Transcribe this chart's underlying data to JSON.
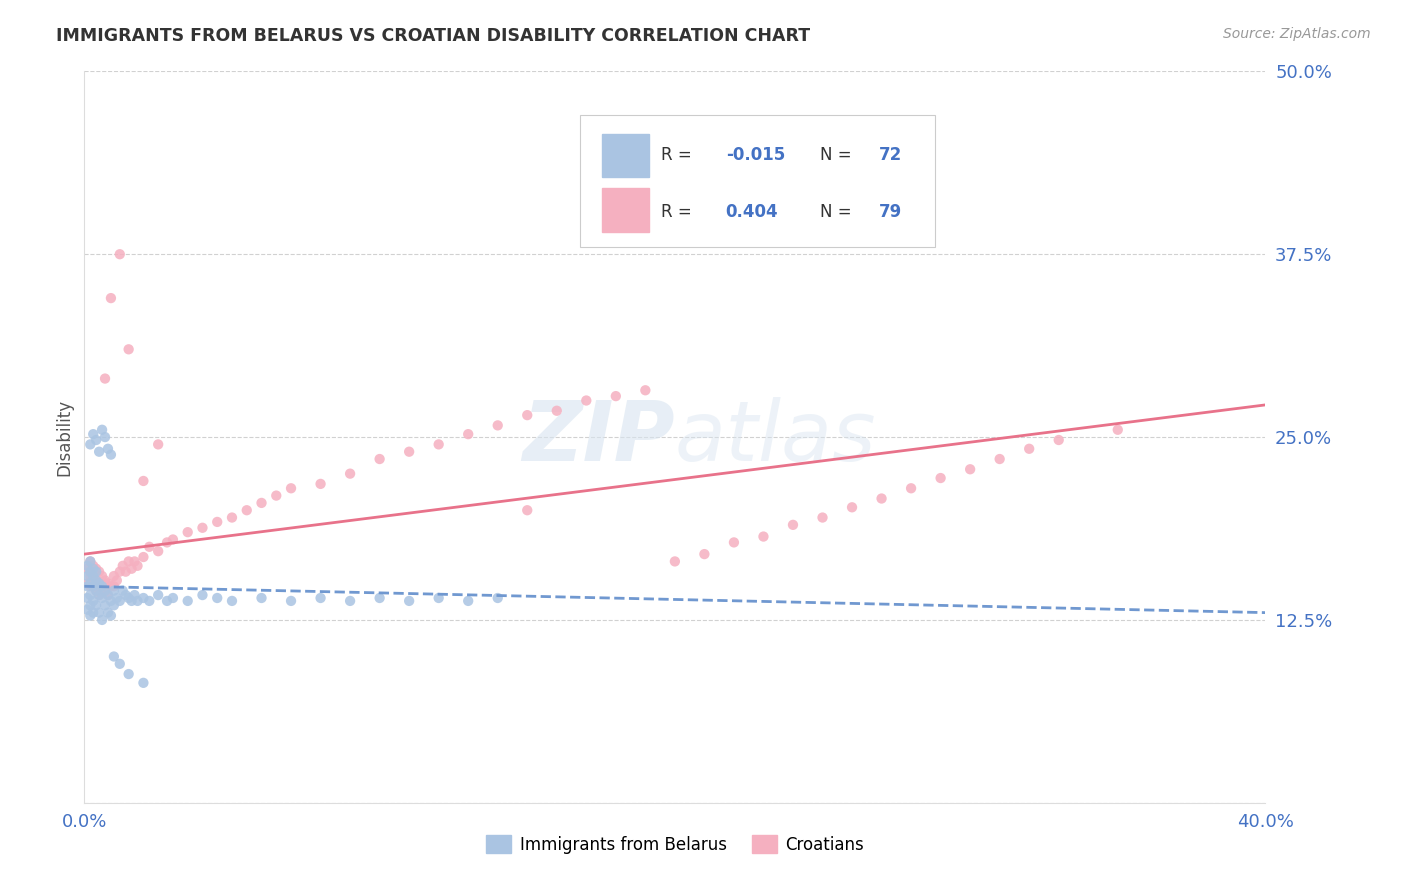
{
  "title": "IMMIGRANTS FROM BELARUS VS CROATIAN DISABILITY CORRELATION CHART",
  "source": "Source: ZipAtlas.com",
  "ylabel": "Disability",
  "x_min": 0.0,
  "x_max": 0.4,
  "y_min": 0.0,
  "y_max": 0.5,
  "x_ticks": [
    0.0,
    0.1,
    0.2,
    0.3,
    0.4
  ],
  "x_tick_labels": [
    "0.0%",
    "",
    "",
    "",
    "40.0%"
  ],
  "y_ticks": [
    0.0,
    0.125,
    0.25,
    0.375,
    0.5
  ],
  "y_tick_labels": [
    "",
    "12.5%",
    "25.0%",
    "37.5%",
    "50.0%"
  ],
  "color_blue_scatter": "#aac4e2",
  "color_pink_scatter": "#f5b0c0",
  "color_blue_text": "#4472c4",
  "color_pink_line": "#e8728a",
  "color_blue_line": "#7098d0",
  "color_grid": "#cccccc",
  "background_color": "#ffffff",
  "watermark_zip": "ZIP",
  "watermark_atlas": "atlas",
  "blue_scatter_x": [
    0.001,
    0.001,
    0.001,
    0.001,
    0.001,
    0.002,
    0.002,
    0.002,
    0.002,
    0.002,
    0.002,
    0.003,
    0.003,
    0.003,
    0.003,
    0.003,
    0.004,
    0.004,
    0.004,
    0.004,
    0.005,
    0.005,
    0.005,
    0.006,
    0.006,
    0.006,
    0.007,
    0.007,
    0.008,
    0.008,
    0.009,
    0.009,
    0.01,
    0.01,
    0.011,
    0.012,
    0.013,
    0.014,
    0.015,
    0.016,
    0.017,
    0.018,
    0.02,
    0.022,
    0.025,
    0.028,
    0.03,
    0.035,
    0.04,
    0.045,
    0.05,
    0.06,
    0.07,
    0.08,
    0.09,
    0.1,
    0.11,
    0.12,
    0.13,
    0.14,
    0.002,
    0.003,
    0.004,
    0.005,
    0.006,
    0.007,
    0.008,
    0.009,
    0.01,
    0.012,
    0.015,
    0.02
  ],
  "blue_scatter_y": [
    0.155,
    0.148,
    0.162,
    0.14,
    0.132,
    0.158,
    0.15,
    0.165,
    0.142,
    0.135,
    0.128,
    0.155,
    0.148,
    0.16,
    0.138,
    0.13,
    0.152,
    0.145,
    0.158,
    0.135,
    0.15,
    0.142,
    0.13,
    0.148,
    0.14,
    0.125,
    0.145,
    0.135,
    0.142,
    0.13,
    0.138,
    0.128,
    0.145,
    0.135,
    0.14,
    0.138,
    0.145,
    0.142,
    0.14,
    0.138,
    0.142,
    0.138,
    0.14,
    0.138,
    0.142,
    0.138,
    0.14,
    0.138,
    0.142,
    0.14,
    0.138,
    0.14,
    0.138,
    0.14,
    0.138,
    0.14,
    0.138,
    0.14,
    0.138,
    0.14,
    0.245,
    0.252,
    0.248,
    0.24,
    0.255,
    0.25,
    0.242,
    0.238,
    0.1,
    0.095,
    0.088,
    0.082
  ],
  "pink_scatter_x": [
    0.001,
    0.001,
    0.002,
    0.002,
    0.002,
    0.003,
    0.003,
    0.003,
    0.004,
    0.004,
    0.004,
    0.005,
    0.005,
    0.005,
    0.006,
    0.006,
    0.007,
    0.007,
    0.008,
    0.008,
    0.009,
    0.01,
    0.01,
    0.011,
    0.012,
    0.013,
    0.014,
    0.015,
    0.016,
    0.017,
    0.018,
    0.02,
    0.022,
    0.025,
    0.028,
    0.03,
    0.035,
    0.04,
    0.045,
    0.05,
    0.055,
    0.06,
    0.065,
    0.07,
    0.08,
    0.09,
    0.1,
    0.11,
    0.12,
    0.13,
    0.14,
    0.15,
    0.16,
    0.17,
    0.18,
    0.19,
    0.2,
    0.21,
    0.22,
    0.23,
    0.24,
    0.25,
    0.26,
    0.27,
    0.28,
    0.29,
    0.3,
    0.31,
    0.32,
    0.33,
    0.35,
    0.007,
    0.009,
    0.012,
    0.015,
    0.02,
    0.025,
    0.15
  ],
  "pink_scatter_y": [
    0.16,
    0.15,
    0.165,
    0.155,
    0.148,
    0.162,
    0.155,
    0.148,
    0.16,
    0.152,
    0.145,
    0.158,
    0.15,
    0.142,
    0.155,
    0.148,
    0.152,
    0.145,
    0.15,
    0.142,
    0.148,
    0.155,
    0.148,
    0.152,
    0.158,
    0.162,
    0.158,
    0.165,
    0.16,
    0.165,
    0.162,
    0.168,
    0.175,
    0.172,
    0.178,
    0.18,
    0.185,
    0.188,
    0.192,
    0.195,
    0.2,
    0.205,
    0.21,
    0.215,
    0.218,
    0.225,
    0.235,
    0.24,
    0.245,
    0.252,
    0.258,
    0.265,
    0.268,
    0.275,
    0.278,
    0.282,
    0.165,
    0.17,
    0.178,
    0.182,
    0.19,
    0.195,
    0.202,
    0.208,
    0.215,
    0.222,
    0.228,
    0.235,
    0.242,
    0.248,
    0.255,
    0.29,
    0.345,
    0.375,
    0.31,
    0.22,
    0.245,
    0.2
  ],
  "pink_line_x0": 0.0,
  "pink_line_y0": 0.17,
  "pink_line_x1": 0.4,
  "pink_line_y1": 0.272,
  "blue_line_x0": 0.0,
  "blue_line_y0": 0.148,
  "blue_line_x1": 0.4,
  "blue_line_y1": 0.13
}
